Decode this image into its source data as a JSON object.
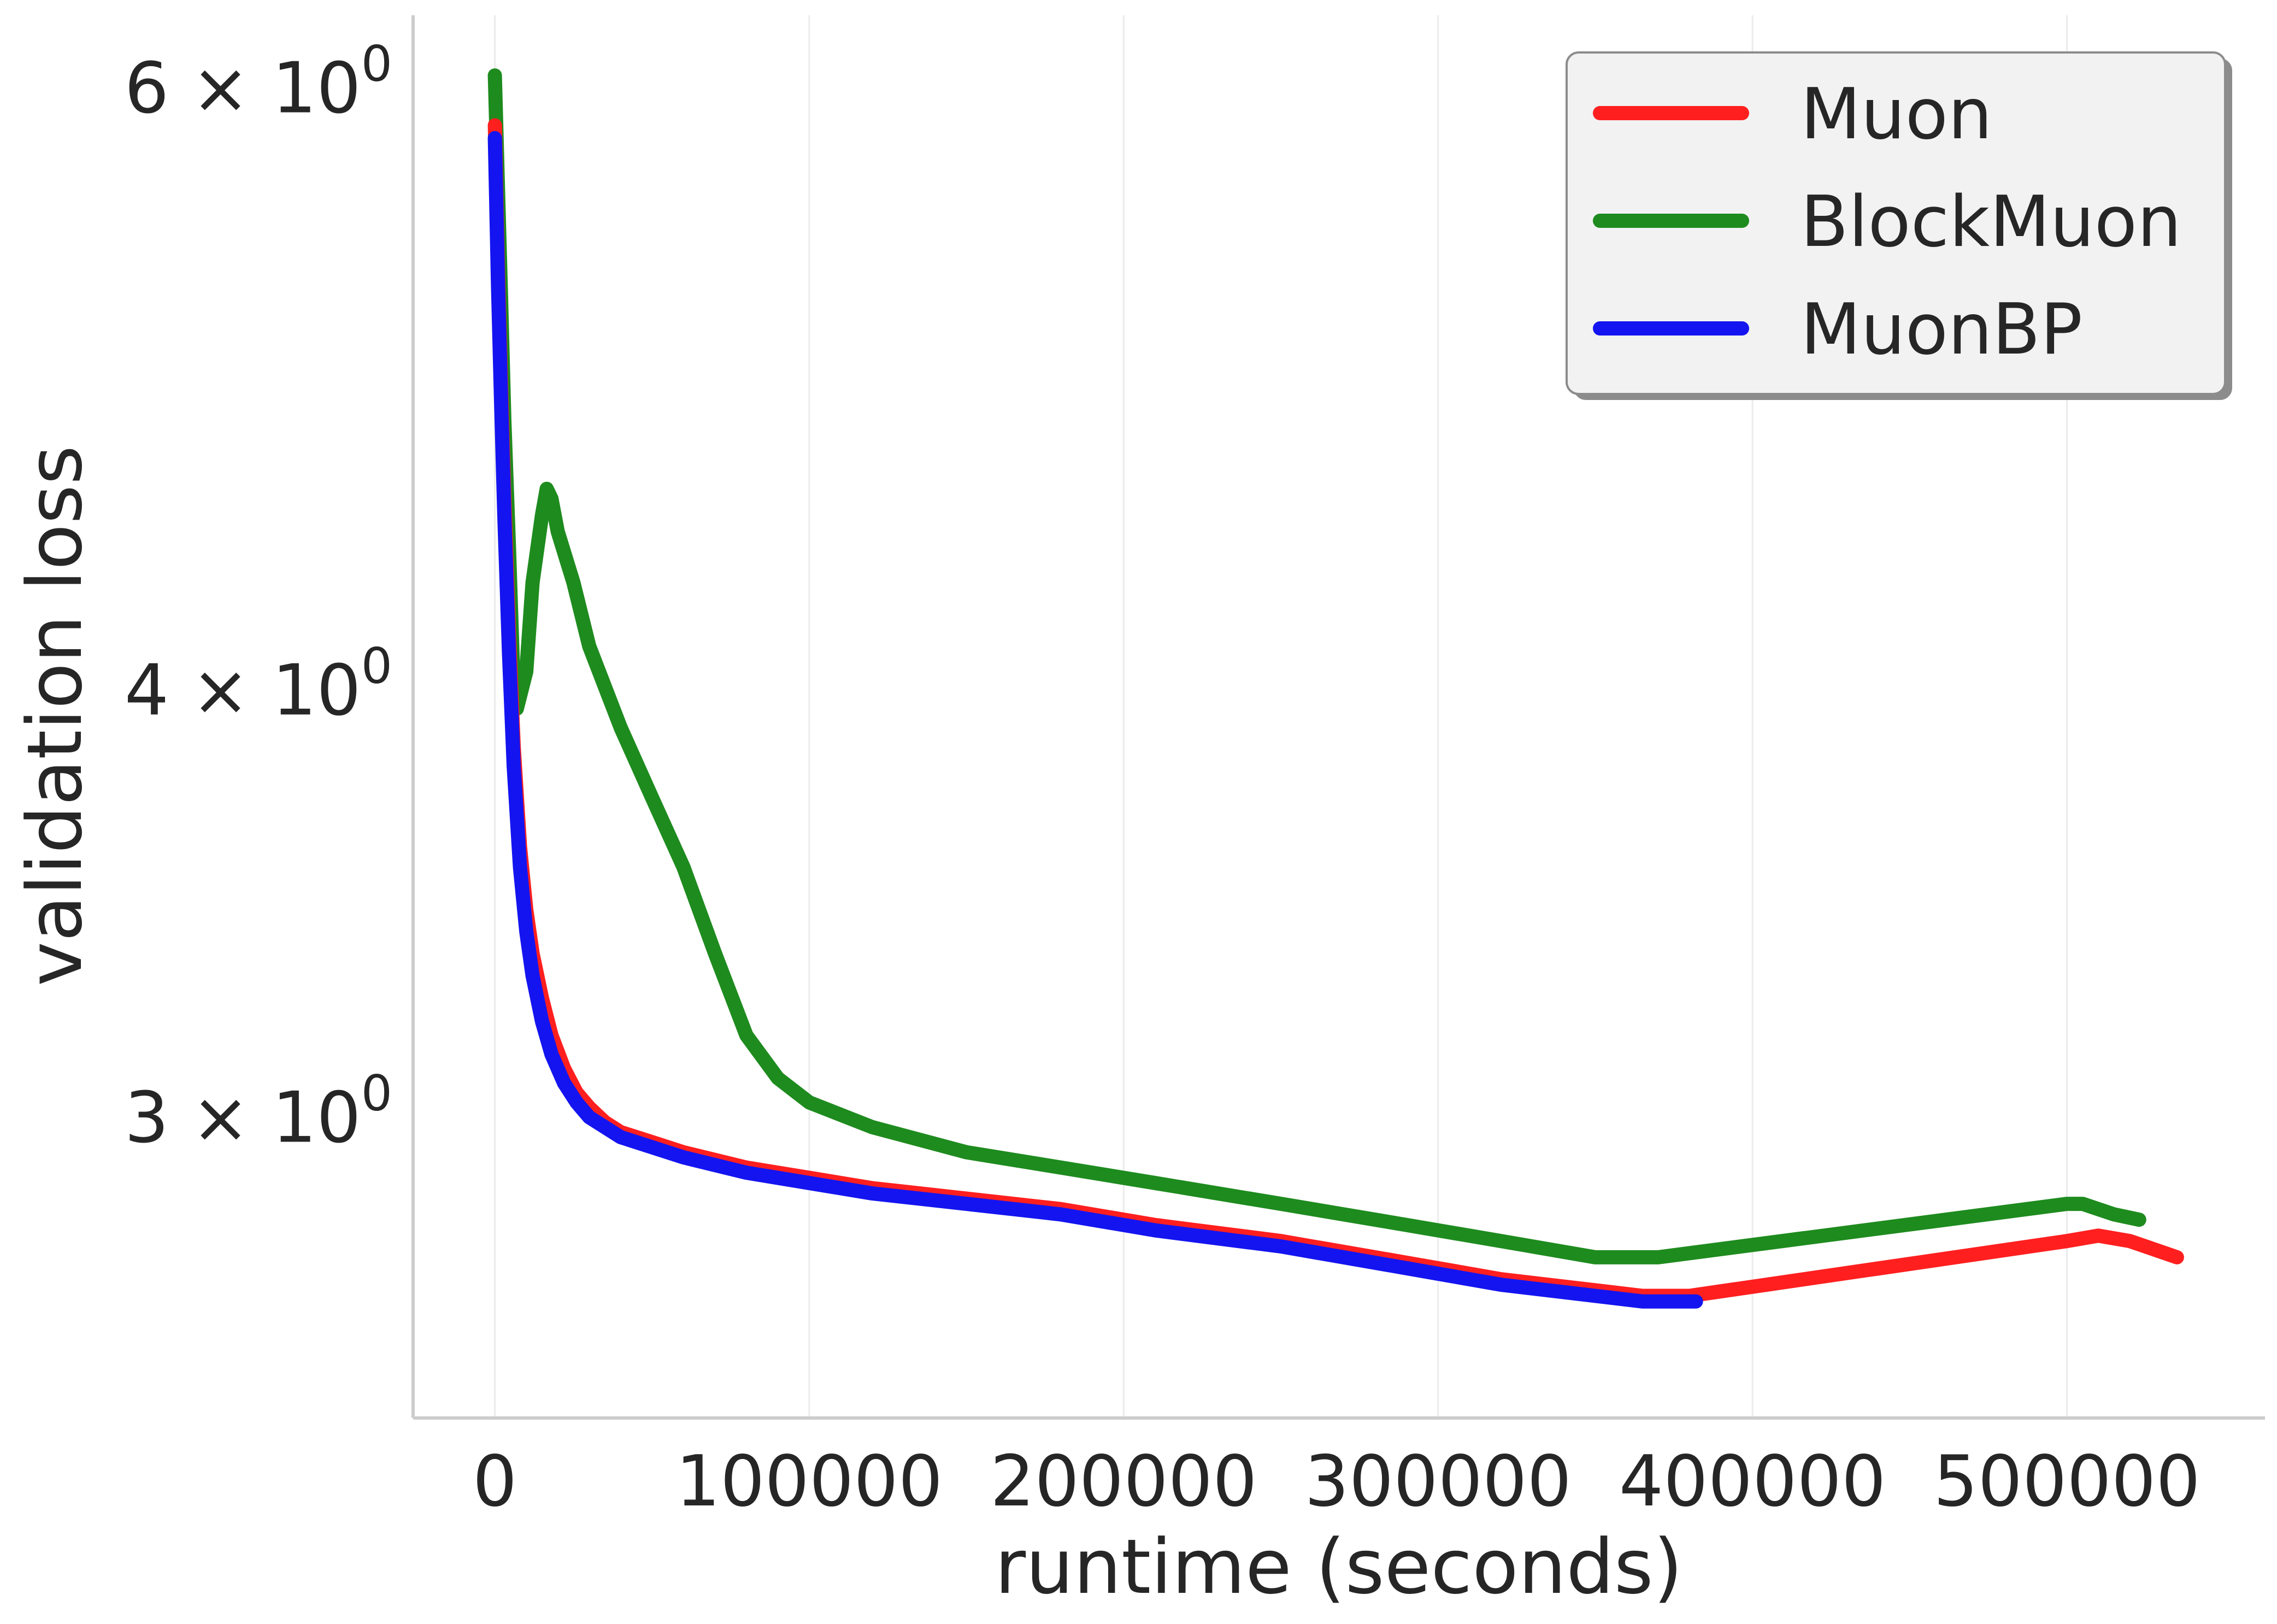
{
  "chart_data": {
    "type": "line",
    "xlabel": "runtime (seconds)",
    "ylabel": "validation loss",
    "xlim": [
      -26000,
      563000
    ],
    "ylim": [
      2.45,
      6.3
    ],
    "yscale": "log",
    "grid": "x-only",
    "legend_position": "top-right",
    "x_ticks": [
      {
        "value": 0,
        "label": "0"
      },
      {
        "value": 100000,
        "label": "100000"
      },
      {
        "value": 200000,
        "label": "200000"
      },
      {
        "value": 300000,
        "label": "300000"
      },
      {
        "value": 400000,
        "label": "400000"
      },
      {
        "value": 500000,
        "label": "500000"
      }
    ],
    "y_ticks": [
      {
        "value": 3,
        "label_base": "3 × 10",
        "label_exp": "0"
      },
      {
        "value": 4,
        "label_base": "4 × 10",
        "label_exp": "0"
      },
      {
        "value": 6,
        "label_base": "6 × 10",
        "label_exp": "0"
      }
    ],
    "series": [
      {
        "name": "Muon",
        "color": "#ff1f1f",
        "points": [
          [
            0,
            5.85
          ],
          [
            1000,
            5.3
          ],
          [
            2000,
            4.9
          ],
          [
            3000,
            4.55
          ],
          [
            4500,
            4.15
          ],
          [
            6000,
            3.85
          ],
          [
            8000,
            3.6
          ],
          [
            10000,
            3.45
          ],
          [
            12000,
            3.35
          ],
          [
            15000,
            3.25
          ],
          [
            18000,
            3.17
          ],
          [
            22000,
            3.1
          ],
          [
            26000,
            3.05
          ],
          [
            30000,
            3.02
          ],
          [
            35000,
            2.99
          ],
          [
            40000,
            2.97
          ],
          [
            50000,
            2.95
          ],
          [
            60000,
            2.93
          ],
          [
            80000,
            2.9
          ],
          [
            100000,
            2.88
          ],
          [
            120000,
            2.86
          ],
          [
            150000,
            2.84
          ],
          [
            180000,
            2.82
          ],
          [
            210000,
            2.79
          ],
          [
            250000,
            2.76
          ],
          [
            290000,
            2.72
          ],
          [
            320000,
            2.69
          ],
          [
            350000,
            2.67
          ],
          [
            365000,
            2.66
          ],
          [
            380000,
            2.66
          ],
          [
            500000,
            2.76
          ],
          [
            510000,
            2.77
          ],
          [
            520000,
            2.76
          ],
          [
            530000,
            2.74
          ],
          [
            535000,
            2.73
          ]
        ]
      },
      {
        "name": "BlockMuon",
        "color": "#1e8b1e",
        "points": [
          [
            0,
            6.05
          ],
          [
            1000,
            5.6
          ],
          [
            2000,
            5.2
          ],
          [
            3000,
            4.8
          ],
          [
            4500,
            4.4
          ],
          [
            6000,
            4.0
          ],
          [
            7000,
            3.95
          ],
          [
            10000,
            4.05
          ],
          [
            12000,
            4.3
          ],
          [
            15000,
            4.5
          ],
          [
            16500,
            4.58
          ],
          [
            18000,
            4.55
          ],
          [
            20000,
            4.45
          ],
          [
            25000,
            4.3
          ],
          [
            30000,
            4.12
          ],
          [
            40000,
            3.9
          ],
          [
            50000,
            3.72
          ],
          [
            60000,
            3.55
          ],
          [
            70000,
            3.35
          ],
          [
            80000,
            3.17
          ],
          [
            90000,
            3.08
          ],
          [
            100000,
            3.03
          ],
          [
            120000,
            2.98
          ],
          [
            150000,
            2.93
          ],
          [
            180000,
            2.9
          ],
          [
            210000,
            2.87
          ],
          [
            250000,
            2.83
          ],
          [
            290000,
            2.79
          ],
          [
            320000,
            2.76
          ],
          [
            350000,
            2.73
          ],
          [
            370000,
            2.73
          ],
          [
            500000,
            2.83
          ],
          [
            505000,
            2.83
          ],
          [
            515000,
            2.81
          ],
          [
            523000,
            2.8
          ]
        ]
      },
      {
        "name": "MuonBP",
        "color": "#1414f0",
        "points": [
          [
            0,
            5.8
          ],
          [
            1000,
            5.25
          ],
          [
            2000,
            4.85
          ],
          [
            3000,
            4.5
          ],
          [
            4500,
            4.1
          ],
          [
            6000,
            3.8
          ],
          [
            8000,
            3.55
          ],
          [
            10000,
            3.4
          ],
          [
            12000,
            3.3
          ],
          [
            15000,
            3.2
          ],
          [
            18000,
            3.13
          ],
          [
            22000,
            3.07
          ],
          [
            26000,
            3.03
          ],
          [
            30000,
            3.0
          ],
          [
            35000,
            2.98
          ],
          [
            40000,
            2.96
          ],
          [
            50000,
            2.94
          ],
          [
            60000,
            2.92
          ],
          [
            80000,
            2.89
          ],
          [
            100000,
            2.87
          ],
          [
            120000,
            2.85
          ],
          [
            150000,
            2.83
          ],
          [
            180000,
            2.81
          ],
          [
            210000,
            2.78
          ],
          [
            250000,
            2.75
          ],
          [
            290000,
            2.71
          ],
          [
            320000,
            2.68
          ],
          [
            350000,
            2.66
          ],
          [
            365000,
            2.65
          ],
          [
            382000,
            2.65
          ]
        ]
      }
    ]
  }
}
